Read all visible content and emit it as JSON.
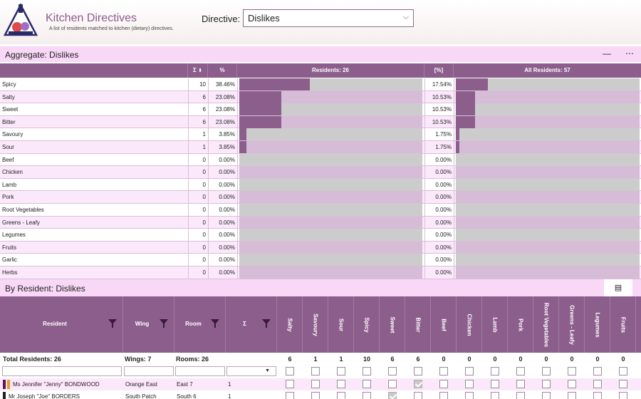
{
  "app": {
    "title": "Kitchen Directives",
    "subtitle": "A list of residents matched to kitchen (dietary) directives."
  },
  "directive": {
    "label": "Directive:",
    "value": "Dislikes"
  },
  "aggregate": {
    "title": "Aggregate: Dislikes",
    "headers": {
      "sum": "Σ",
      "pct": "%",
      "residents": "Residents: 26",
      "pct2": "[%]",
      "all": "All Residents: 57"
    },
    "rows": [
      {
        "name": "Spicy",
        "count": "10",
        "pct": "38.46%",
        "pct2": "17.54%",
        "frac": 0.3846,
        "frac2": 0.1754
      },
      {
        "name": "Salty",
        "count": "6",
        "pct": "23.08%",
        "pct2": "10.53%",
        "frac": 0.2308,
        "frac2": 0.1053
      },
      {
        "name": "Sweet",
        "count": "6",
        "pct": "23.08%",
        "pct2": "10.53%",
        "frac": 0.2308,
        "frac2": 0.1053
      },
      {
        "name": "Bitter",
        "count": "6",
        "pct": "23.08%",
        "pct2": "10.53%",
        "frac": 0.2308,
        "frac2": 0.1053
      },
      {
        "name": "Savoury",
        "count": "1",
        "pct": "3.85%",
        "pct2": "1.75%",
        "frac": 0.0385,
        "frac2": 0.0175
      },
      {
        "name": "Sour",
        "count": "1",
        "pct": "3.85%",
        "pct2": "1.75%",
        "frac": 0.0385,
        "frac2": 0.0175
      },
      {
        "name": "Beef",
        "count": "0",
        "pct": "0.00%",
        "pct2": "0.00%",
        "frac": 0,
        "frac2": 0
      },
      {
        "name": "Chicken",
        "count": "0",
        "pct": "0.00%",
        "pct2": "0.00%",
        "frac": 0,
        "frac2": 0
      },
      {
        "name": "Lamb",
        "count": "0",
        "pct": "0.00%",
        "pct2": "0.00%",
        "frac": 0,
        "frac2": 0
      },
      {
        "name": "Pork",
        "count": "0",
        "pct": "0.00%",
        "pct2": "0.00%",
        "frac": 0,
        "frac2": 0
      },
      {
        "name": "Root Vegetables",
        "count": "0",
        "pct": "0.00%",
        "pct2": "0.00%",
        "frac": 0,
        "frac2": 0
      },
      {
        "name": "Greens - Leafy",
        "count": "0",
        "pct": "0.00%",
        "pct2": "0.00%",
        "frac": 0,
        "frac2": 0
      },
      {
        "name": "Legumes",
        "count": "0",
        "pct": "0.00%",
        "pct2": "0.00%",
        "frac": 0,
        "frac2": 0
      },
      {
        "name": "Fruits",
        "count": "0",
        "pct": "0.00%",
        "pct2": "0.00%",
        "frac": 0,
        "frac2": 0
      },
      {
        "name": "Garlic",
        "count": "0",
        "pct": "0.00%",
        "pct2": "0.00%",
        "frac": 0,
        "frac2": 0
      },
      {
        "name": "Herbs",
        "count": "0",
        "pct": "0.00%",
        "pct2": "0.00%",
        "frac": 0,
        "frac2": 0
      }
    ]
  },
  "by_resident": {
    "title": "By Resident: Dislikes",
    "headers": {
      "resident": "Resident",
      "wing": "Wing",
      "room": "Room",
      "sum": "Σ"
    },
    "directive_columns": [
      "Salty",
      "Savoury",
      "Sour",
      "Spicy",
      "Sweet",
      "Bitter",
      "Beef",
      "Chicken",
      "Lamb",
      "Pork",
      "Root Vegetables",
      "Greens - Leafy",
      "Legumes",
      "Fruits"
    ],
    "totals": {
      "residents": "Total Residents: 26",
      "wings": "Wings: 7",
      "rooms": "Rooms: 26",
      "counts": [
        "6",
        "1",
        "1",
        "10",
        "6",
        "6",
        "0",
        "0",
        "0",
        "0",
        "0",
        "0",
        "0",
        "0"
      ]
    },
    "rows": [
      {
        "name": "Ms Jennifer \"Jenny\" BONDWOOD",
        "wing": "Orange East",
        "room": "East  7",
        "sum": "1",
        "checks": [
          false,
          false,
          false,
          false,
          false,
          true,
          false,
          false,
          false,
          false,
          false,
          false,
          false,
          false
        ],
        "tags": [
          "#5a1a5a",
          "#e8a020"
        ]
      },
      {
        "name": "Mr Joseph \"Joe\" BORDERS",
        "wing": "South Patch",
        "room": "South  6",
        "sum": "1",
        "checks": [
          false,
          false,
          false,
          false,
          true,
          false,
          false,
          false,
          false,
          false,
          false,
          false,
          false,
          false
        ],
        "tags": [
          "#222222"
        ]
      }
    ]
  },
  "colors": {
    "accent": "#8c5e8c",
    "row_alt": "#fce8fb",
    "section_bar": "#f8d8f6"
  }
}
